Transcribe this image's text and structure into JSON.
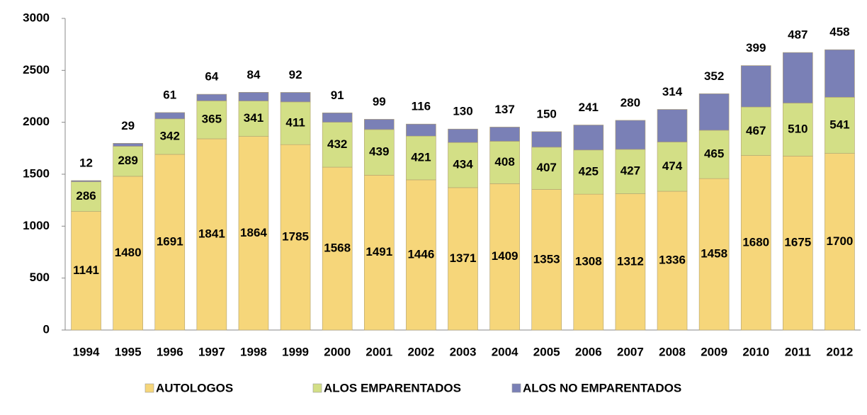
{
  "chart_data": {
    "type": "stacked_bar",
    "categories": [
      "1994",
      "1995",
      "1996",
      "1997",
      "1998",
      "1999",
      "2000",
      "2001",
      "2002",
      "2003",
      "2004",
      "2005",
      "2006",
      "2007",
      "2008",
      "2009",
      "2010",
      "2011",
      "2012"
    ],
    "series": [
      {
        "name": "AUTOLOGOS",
        "color": "#f6d67a",
        "values": [
          1141,
          1480,
          1691,
          1841,
          1864,
          1785,
          1568,
          1491,
          1446,
          1371,
          1409,
          1353,
          1308,
          1312,
          1336,
          1458,
          1680,
          1675,
          1700
        ]
      },
      {
        "name": "ALOS EMPARENTADOS",
        "color": "#d3df86",
        "values": [
          286,
          289,
          342,
          365,
          341,
          411,
          432,
          439,
          421,
          434,
          408,
          407,
          425,
          427,
          474,
          465,
          467,
          510,
          541
        ]
      },
      {
        "name": "ALOS NO EMPARENTADOS",
        "color": "#7a80b6",
        "values": [
          12,
          29,
          61,
          64,
          84,
          92,
          91,
          99,
          116,
          130,
          137,
          150,
          241,
          280,
          314,
          352,
          399,
          487,
          458
        ]
      }
    ],
    "ylim": [
      0,
      3000
    ],
    "yticks": [
      0,
      500,
      1000,
      1500,
      2000,
      2500,
      3000
    ],
    "grid": false,
    "legend": "bottom"
  }
}
